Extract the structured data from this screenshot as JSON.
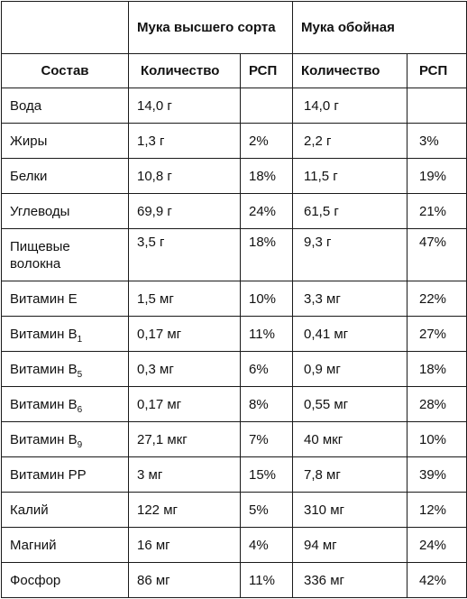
{
  "groups": {
    "premium": "Мука высшего сорта",
    "whole": "Мука обойная"
  },
  "columns": {
    "composition": "Состав",
    "premium_amount": "Количество",
    "premium_rdi": "РСП",
    "whole_amount": "Количество",
    "whole_rdi": "РСП"
  },
  "rows": [
    {
      "name": "Вода",
      "sub": "",
      "premium_amount": "14,0 г",
      "premium_rdi": "",
      "whole_amount": "14,0 г",
      "whole_rdi": ""
    },
    {
      "name": "Жиры",
      "sub": "",
      "premium_amount": "1,3 г",
      "premium_rdi": "2%",
      "whole_amount": "2,2 г",
      "whole_rdi": "3%"
    },
    {
      "name": "Белки",
      "sub": "",
      "premium_amount": "10,8 г",
      "premium_rdi": "18%",
      "whole_amount": "11,5 г",
      "whole_rdi": "19%"
    },
    {
      "name": "Углеводы",
      "sub": "",
      "premium_amount": "69,9 г",
      "premium_rdi": "24%",
      "whole_amount": "61,5 г",
      "whole_rdi": "21%"
    },
    {
      "name": "Пищевые волокна",
      "sub": "",
      "premium_amount": "3,5 г",
      "premium_rdi": "18%",
      "whole_amount": "9,3 г",
      "whole_rdi": "47%"
    },
    {
      "name": "Витамин Е",
      "sub": "",
      "premium_amount": "1,5 мг",
      "premium_rdi": "10%",
      "whole_amount": "3,3 мг",
      "whole_rdi": "22%"
    },
    {
      "name": "Витамин В",
      "sub": "1",
      "premium_amount": "0,17 мг",
      "premium_rdi": "11%",
      "whole_amount": "0,41 мг",
      "whole_rdi": "27%"
    },
    {
      "name": "Витамин В",
      "sub": "5",
      "premium_amount": "0,3 мг",
      "premium_rdi": "6%",
      "whole_amount": "0,9 мг",
      "whole_rdi": "18%"
    },
    {
      "name": "Витамин В",
      "sub": "6",
      "premium_amount": "0,17 мг",
      "premium_rdi": "8%",
      "whole_amount": "0,55 мг",
      "whole_rdi": "28%"
    },
    {
      "name": "Витамин В",
      "sub": "9",
      "premium_amount": "27,1 мкг",
      "premium_rdi": "7%",
      "whole_amount": "40 мкг",
      "whole_rdi": "10%"
    },
    {
      "name": "Витамин РР",
      "sub": "",
      "premium_amount": "3 мг",
      "premium_rdi": "15%",
      "whole_amount": "7,8 мг",
      "whole_rdi": "39%"
    },
    {
      "name": "Калий",
      "sub": "",
      "premium_amount": "122 мг",
      "premium_rdi": "5%",
      "whole_amount": "310 мг",
      "whole_rdi": "12%"
    },
    {
      "name": "Магний",
      "sub": "",
      "premium_amount": "16 мг",
      "premium_rdi": "4%",
      "whole_amount": "94 мг",
      "whole_rdi": "24%"
    },
    {
      "name": "Фосфор",
      "sub": "",
      "premium_amount": "86 мг",
      "premium_rdi": "11%",
      "whole_amount": "336 мг",
      "whole_rdi": "42%"
    }
  ]
}
